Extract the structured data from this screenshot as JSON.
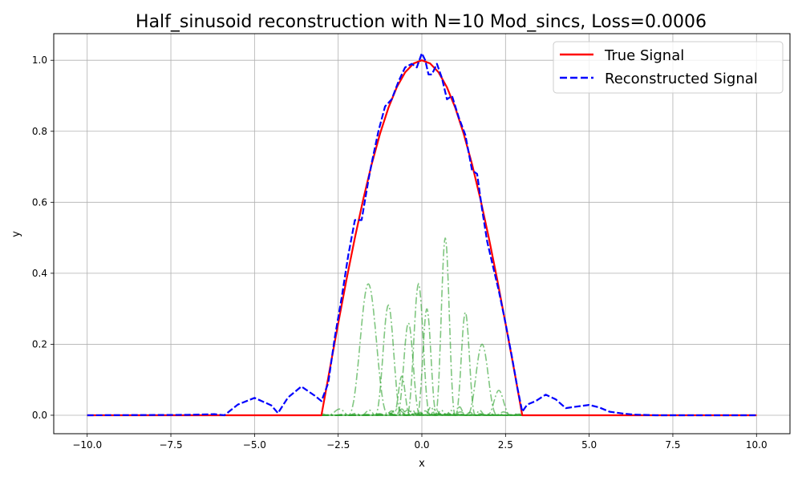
{
  "chart_data": {
    "type": "line",
    "title": "Half_sinusoid reconstruction with N=10 Mod_sincs, Loss=0.0006",
    "xlabel": "x",
    "ylabel": "y",
    "xlim": [
      -11,
      11
    ],
    "ylim": [
      -0.052,
      1.075
    ],
    "xticks": [
      -10.0,
      -7.5,
      -5.0,
      -2.5,
      0.0,
      2.5,
      5.0,
      7.5,
      10.0
    ],
    "xtick_labels": [
      "−10.0",
      "−7.5",
      "−5.0",
      "−2.5",
      "0.0",
      "2.5",
      "5.0",
      "7.5",
      "10.0"
    ],
    "yticks": [
      0.0,
      0.2,
      0.4,
      0.6,
      0.8,
      1.0
    ],
    "ytick_labels": [
      "0.0",
      "0.2",
      "0.4",
      "0.6",
      "0.8",
      "1.0"
    ],
    "grid": true,
    "legend_position": "top-right",
    "series": [
      {
        "name": "True Signal",
        "color": "#ff0000",
        "style": "solid",
        "x": [
          -10,
          -3,
          -2.75,
          -2.5,
          -2.25,
          -2,
          -1.75,
          -1.5,
          -1.25,
          -1,
          -0.75,
          -0.5,
          -0.25,
          0,
          0.25,
          0.5,
          0.75,
          1,
          1.25,
          1.5,
          1.75,
          2,
          2.25,
          2.5,
          2.75,
          3,
          10
        ],
        "y": [
          0,
          0,
          0.131,
          0.259,
          0.383,
          0.5,
          0.609,
          0.707,
          0.793,
          0.866,
          0.924,
          0.966,
          0.991,
          1.0,
          0.991,
          0.966,
          0.924,
          0.866,
          0.793,
          0.707,
          0.609,
          0.5,
          0.383,
          0.259,
          0.131,
          0,
          0
        ]
      },
      {
        "name": "Reconstructed Signal",
        "color": "#0000ff",
        "style": "dashed",
        "x": [
          -10,
          -7,
          -6.2,
          -5.9,
          -5.5,
          -5.0,
          -4.5,
          -4.3,
          -4.0,
          -3.6,
          -3.2,
          -3.0,
          -2.8,
          -2.6,
          -2.4,
          -2.2,
          -2.0,
          -1.8,
          -1.6,
          -1.5,
          -1.3,
          -1.1,
          -0.9,
          -0.7,
          -0.5,
          -0.3,
          -0.15,
          0,
          0.1,
          0.2,
          0.3,
          0.45,
          0.6,
          0.75,
          0.9,
          1.1,
          1.3,
          1.5,
          1.65,
          1.8,
          1.95,
          2.1,
          2.3,
          2.5,
          2.7,
          2.85,
          3.0,
          3.15,
          3.4,
          3.7,
          4.0,
          4.3,
          4.6,
          5.0,
          5.3,
          5.6,
          6.0,
          6.3,
          7.0,
          10
        ],
        "y": [
          0,
          0.001,
          0.003,
          0.0,
          0.03,
          0.049,
          0.028,
          0.006,
          0.05,
          0.081,
          0.055,
          0.04,
          0.09,
          0.22,
          0.33,
          0.45,
          0.55,
          0.55,
          0.66,
          0.71,
          0.8,
          0.87,
          0.89,
          0.94,
          0.98,
          0.99,
          0.98,
          1.02,
          1.0,
          0.96,
          0.96,
          0.99,
          0.95,
          0.89,
          0.9,
          0.84,
          0.79,
          0.69,
          0.68,
          0.58,
          0.49,
          0.43,
          0.35,
          0.26,
          0.16,
          0.08,
          0.01,
          0.03,
          0.04,
          0.058,
          0.045,
          0.02,
          0.024,
          0.029,
          0.022,
          0.01,
          0.005,
          0.002,
          0.0,
          0
        ]
      }
    ],
    "components": {
      "name": "",
      "color": "#2ca02c",
      "style": "dashdot",
      "count": 10,
      "functions": [
        {
          "center": -1.6,
          "amplitude": 0.37,
          "width": 0.6
        },
        {
          "center": -1.0,
          "amplitude": 0.31,
          "width": 0.4
        },
        {
          "center": -0.4,
          "amplitude": 0.26,
          "width": 0.35
        },
        {
          "center": -0.1,
          "amplitude": 0.37,
          "width": 0.35
        },
        {
          "center": 0.15,
          "amplitude": 0.3,
          "width": 0.3
        },
        {
          "center": 0.7,
          "amplitude": 0.5,
          "width": 0.3
        },
        {
          "center": 1.3,
          "amplitude": 0.29,
          "width": 0.3
        },
        {
          "center": 1.8,
          "amplitude": 0.2,
          "width": 0.45
        },
        {
          "center": -0.6,
          "amplitude": 0.11,
          "width": 0.25
        },
        {
          "center": 2.3,
          "amplitude": 0.07,
          "width": 0.35
        }
      ]
    }
  }
}
